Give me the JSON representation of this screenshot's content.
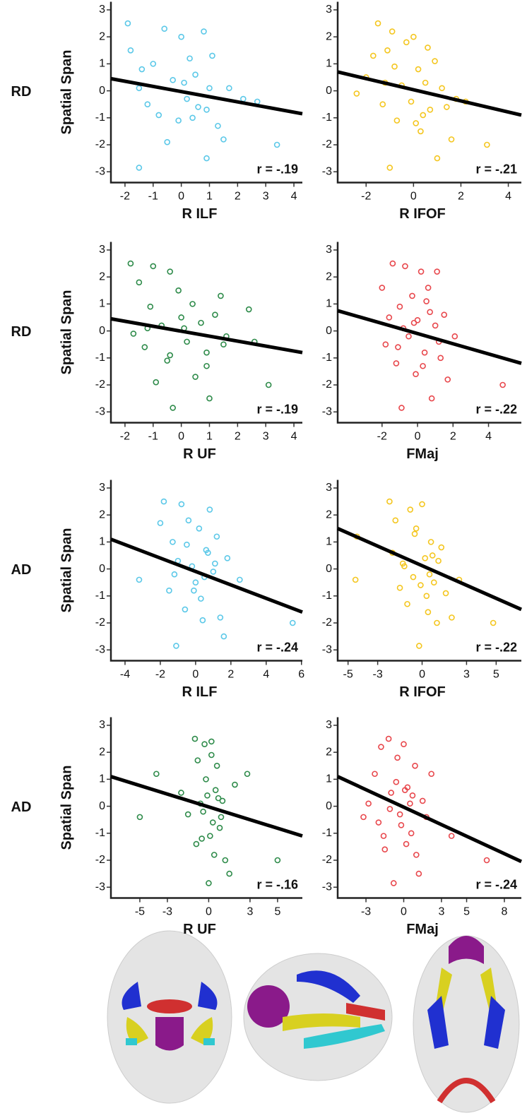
{
  "row_labels": [
    "RD",
    "RD",
    "AD",
    "AD"
  ],
  "chart_data": [
    {
      "type": "scatter",
      "x_label": "R ILF",
      "y_label": "Spatial Span",
      "annotation": "r = -.19",
      "color": "#5bc8e8",
      "xlim": [
        -2.5,
        4.3
      ],
      "ylim": [
        -3.4,
        3.3
      ],
      "xticks": [
        -2,
        -1,
        0,
        1,
        2,
        3,
        4
      ],
      "yticks": [
        3,
        2,
        1,
        0,
        -1,
        -2,
        -3
      ],
      "x": [
        -1.9,
        -1.8,
        -1.5,
        -1.4,
        -1.2,
        -1,
        -0.8,
        -0.6,
        -0.5,
        -0.3,
        -0.1,
        0,
        0.1,
        0.2,
        0.3,
        0.5,
        0.6,
        0.8,
        0.9,
        1,
        1.1,
        1.3,
        1.5,
        1.7,
        2.2,
        2.7,
        3.4,
        -1.5,
        0.9,
        0.4
      ],
      "values": [
        2.5,
        1.5,
        -2.85,
        0.8,
        -0.5,
        1,
        -0.9,
        2.3,
        -1.9,
        0.4,
        -1.1,
        2,
        0.3,
        -0.3,
        1.2,
        0.6,
        -0.6,
        2.2,
        -2.5,
        0.1,
        1.3,
        -1.3,
        -1.8,
        0.1,
        -0.3,
        -0.4,
        -2,
        0.1,
        -0.7,
        -1
      ],
      "fit": {
        "x": [
          -2.5,
          4.3
        ],
        "y": [
          0.45,
          -0.85
        ]
      }
    },
    {
      "type": "scatter",
      "x_label": "R IFOF",
      "annotation": "r = -.21",
      "color": "#f4c61f",
      "xlim": [
        -3.2,
        4.55
      ],
      "ylim": [
        -3.4,
        3.3
      ],
      "xticks": [
        -2,
        0,
        2,
        4
      ],
      "yticks": [
        3,
        2,
        1,
        0,
        -1,
        -2,
        -3
      ],
      "x": [
        -2.4,
        -2,
        -1.7,
        -1.5,
        -1.3,
        -1.1,
        -1,
        -0.9,
        -0.7,
        -0.5,
        -0.3,
        -0.1,
        0,
        0.2,
        0.3,
        0.5,
        0.7,
        0.9,
        1,
        1.2,
        1.4,
        1.6,
        1.8,
        2.2,
        3.1,
        -0.8,
        0.1,
        0.6,
        -1.2,
        0.4
      ],
      "values": [
        -0.1,
        0.5,
        1.3,
        2.5,
        -0.5,
        1.5,
        -2.85,
        2.2,
        -1.1,
        0.2,
        1.8,
        -0.4,
        2,
        0.8,
        -1.5,
        0.3,
        -0.7,
        1.1,
        -2.5,
        0.1,
        -0.6,
        -1.8,
        -0.3,
        -0.4,
        -2,
        0.9,
        -1.2,
        1.6,
        0.3,
        -0.9
      ],
      "fit": {
        "x": [
          -3.2,
          4.55
        ],
        "y": [
          0.7,
          -0.9
        ]
      }
    },
    {
      "type": "scatter",
      "x_label": "R UF",
      "y_label": "Spatial Span",
      "annotation": "r = -.19",
      "color": "#2e8b4a",
      "xlim": [
        -2.5,
        4.3
      ],
      "ylim": [
        -3.4,
        3.3
      ],
      "xticks": [
        -2,
        -1,
        0,
        1,
        2,
        3,
        4
      ],
      "yticks": [
        3,
        2,
        1,
        0,
        -1,
        -2,
        -3
      ],
      "x": [
        -1.8,
        -1.7,
        -1.5,
        -1.3,
        -1.1,
        -1,
        -0.9,
        -0.7,
        -0.5,
        -0.4,
        -0.3,
        -0.1,
        0,
        0.2,
        0.4,
        0.5,
        0.7,
        0.9,
        1,
        1.2,
        1.4,
        1.6,
        2.4,
        2.6,
        3.1,
        -0.4,
        0.9,
        0.1,
        -1.2,
        1.5
      ],
      "values": [
        2.5,
        -0.1,
        1.8,
        -0.6,
        0.9,
        2.4,
        -1.9,
        0.2,
        -1.1,
        2.2,
        -2.85,
        1.5,
        0.5,
        -0.4,
        1,
        -1.7,
        0.3,
        -0.8,
        -2.5,
        0.6,
        1.3,
        -0.2,
        0.8,
        -0.4,
        -2,
        -0.9,
        -1.3,
        0.1,
        0.1,
        -0.5
      ],
      "fit": {
        "x": [
          -2.5,
          4.3
        ],
        "y": [
          0.45,
          -0.8
        ]
      }
    },
    {
      "type": "scatter",
      "x_label": "FMaj",
      "annotation": "r = -.22",
      "color": "#e8474c",
      "xlim": [
        -4.5,
        5.85
      ],
      "ylim": [
        -3.4,
        3.3
      ],
      "xticks": [
        -2,
        0,
        2,
        4
      ],
      "yticks": [
        3,
        2,
        1,
        0,
        -1,
        -2,
        -3
      ],
      "x": [
        -2,
        -1.8,
        -1.6,
        -1.4,
        -1.2,
        -1,
        -0.9,
        -0.7,
        -0.5,
        -0.3,
        -0.1,
        0,
        0.2,
        0.4,
        0.6,
        0.8,
        1,
        1.1,
        1.3,
        1.5,
        1.7,
        2.1,
        4.8,
        -0.8,
        0.3,
        -1.1,
        0.7,
        -0.2,
        1.2,
        0.5
      ],
      "values": [
        1.6,
        -0.5,
        0.5,
        2.5,
        -1.2,
        0.9,
        -2.85,
        2.4,
        -0.2,
        1.3,
        -1.6,
        0.4,
        2.2,
        -0.8,
        1.6,
        -2.5,
        0.2,
        2.2,
        -1,
        0.6,
        -1.8,
        -0.2,
        -2,
        0.1,
        -1.3,
        -0.6,
        0.7,
        0.3,
        -0.4,
        1.1
      ],
      "fit": {
        "x": [
          -4.5,
          5.85
        ],
        "y": [
          0.75,
          -1.2
        ]
      }
    },
    {
      "type": "scatter",
      "x_label": "R ILF",
      "y_label": "Spatial Span",
      "annotation": "r = -.24",
      "color": "#5bc8e8",
      "xlim": [
        -4.8,
        6.05
      ],
      "ylim": [
        -3.4,
        3.3
      ],
      "xticks": [
        -4,
        -2,
        0,
        2,
        4,
        6
      ],
      "yticks": [
        3,
        2,
        1,
        0,
        -1,
        -2,
        -3
      ],
      "x": [
        -3.2,
        -2,
        -1.8,
        -1.5,
        -1.3,
        -1.1,
        -1,
        -0.8,
        -0.6,
        -0.4,
        -0.2,
        0,
        0.2,
        0.4,
        0.6,
        0.8,
        1,
        1.2,
        1.4,
        1.6,
        1.8,
        2.5,
        5.5,
        -0.5,
        0.3,
        -1.2,
        0.7,
        -0.1,
        1.1,
        0.5
      ],
      "values": [
        -0.4,
        1.7,
        2.5,
        -0.8,
        1,
        -2.85,
        0.3,
        2.4,
        -1.5,
        1.8,
        0.1,
        -0.5,
        1.5,
        -1.9,
        0.7,
        2.2,
        -0.1,
        1.2,
        -1.8,
        -2.5,
        0.4,
        -0.4,
        -2,
        0.9,
        -1.1,
        -0.2,
        0.6,
        -0.8,
        0.2,
        -0.3
      ],
      "fit": {
        "x": [
          -4.8,
          6.05
        ],
        "y": [
          1.1,
          -1.6
        ]
      }
    },
    {
      "type": "scatter",
      "x_label": "R IFOF",
      "annotation": "r = -.22",
      "color": "#f4c61f",
      "xlim": [
        -5.7,
        6.7
      ],
      "ylim": [
        -3.4,
        3.3
      ],
      "xticks": [
        -5,
        -3,
        0,
        3,
        5
      ],
      "yticks": [
        3,
        2,
        1,
        0,
        -1,
        -2,
        -3
      ],
      "x": [
        -4.4,
        -4.5,
        -2.2,
        -2,
        -1.8,
        -1.5,
        -1.3,
        -1,
        -0.8,
        -0.6,
        -0.4,
        -0.2,
        0,
        0.2,
        0.4,
        0.6,
        0.8,
        1,
        1.3,
        1.6,
        2,
        2.5,
        4.8,
        -0.5,
        0.3,
        -1.2,
        0.7,
        -0.1,
        1.1,
        0.5
      ],
      "values": [
        1.2,
        -0.4,
        2.5,
        0.6,
        1.8,
        -0.7,
        0.2,
        -1.3,
        2.2,
        -0.3,
        1.5,
        -2.85,
        2.4,
        0.4,
        -1.6,
        1,
        -0.5,
        -2,
        0.8,
        -0.9,
        -1.8,
        -0.4,
        -2,
        1.3,
        -1,
        0.1,
        0.5,
        -0.6,
        0.3,
        -0.2
      ],
      "fit": {
        "x": [
          -5.7,
          6.7
        ],
        "y": [
          1.5,
          -1.5
        ]
      }
    },
    {
      "type": "scatter",
      "x_label": "R UF",
      "y_label": "Spatial Span",
      "annotation": "r = -.16",
      "color": "#2e8b4a",
      "xlim": [
        -7.1,
        6.8
      ],
      "ylim": [
        -3.4,
        3.3
      ],
      "xticks": [
        -5,
        -3,
        0,
        3,
        5
      ],
      "yticks": [
        3,
        2,
        1,
        0,
        -1,
        -2,
        -3
      ],
      "x": [
        -5,
        -3.8,
        -2,
        -1.5,
        -1,
        -0.8,
        -0.5,
        -0.3,
        -0.1,
        0,
        0.2,
        0.4,
        0.6,
        0.8,
        1,
        1.2,
        1.5,
        1.9,
        2.8,
        5,
        -0.6,
        0.3,
        -0.2,
        0.5,
        -0.4,
        0.1,
        0.9,
        0.7,
        -0.9,
        0.2
      ],
      "values": [
        -0.4,
        1.2,
        0.5,
        -0.3,
        2.5,
        1.7,
        -1.2,
        2.3,
        0.4,
        -2.85,
        2.4,
        -1.8,
        1.5,
        -0.8,
        0.2,
        -2,
        -2.5,
        0.8,
        1.2,
        -2,
        0.1,
        -0.6,
        1,
        0.6,
        -0.2,
        -1.1,
        -0.4,
        0.3,
        -1.4,
        1.9
      ],
      "fit": {
        "x": [
          -7.1,
          6.8
        ],
        "y": [
          1.1,
          -1.1
        ]
      }
    },
    {
      "type": "scatter",
      "x_label": "FMaj",
      "annotation": "r = -.24",
      "color": "#e8474c",
      "xlim": [
        -5.25,
        9.35
      ],
      "ylim": [
        -3.4,
        3.3
      ],
      "xticks": [
        -3,
        0,
        3,
        5,
        8
      ],
      "yticks": [
        3,
        2,
        1,
        0,
        -1,
        -2,
        -3
      ],
      "x": [
        -3.2,
        -2.8,
        -2.3,
        -2,
        -1.8,
        -1.5,
        -1.2,
        -1,
        -0.8,
        -0.5,
        -0.3,
        0,
        0.3,
        0.6,
        0.9,
        1.2,
        1.5,
        1.8,
        2.2,
        3.8,
        6.6,
        -0.6,
        0.2,
        -1.1,
        0.7,
        -0.2,
        1,
        0.5,
        -1.6,
        0.1
      ],
      "values": [
        -0.4,
        0.1,
        1.2,
        -0.6,
        2.2,
        -1.6,
        2.5,
        0.5,
        -2.85,
        1.8,
        -0.3,
        2.3,
        0.7,
        -1,
        1.5,
        -2.5,
        0.2,
        -0.4,
        1.2,
        -1.1,
        -2,
        0.9,
        -1.4,
        -0.1,
        0.4,
        -0.7,
        -1.8,
        0.1,
        -1.1,
        0.6
      ],
      "fit": {
        "x": [
          -5.25,
          9.35
        ],
        "y": [
          1.1,
          -2.05
        ]
      }
    }
  ]
}
